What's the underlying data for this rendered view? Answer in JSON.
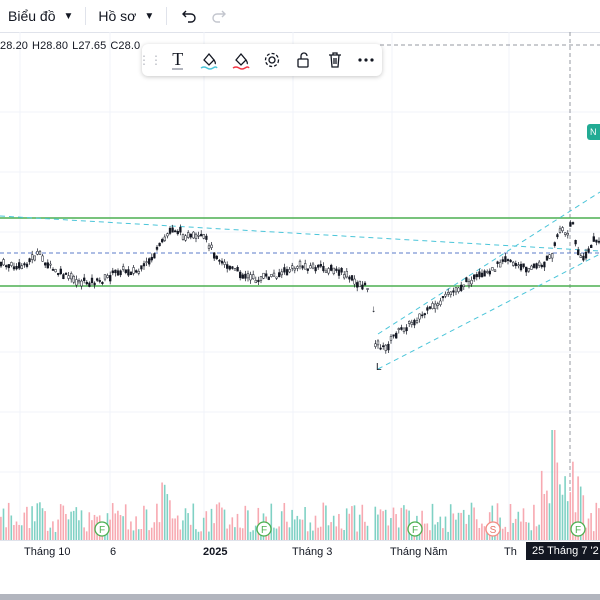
{
  "topbar": {
    "chart_menu": "Biểu đồ",
    "profile_menu": "Hồ sơ"
  },
  "ohlc": {
    "o": "28.20",
    "h": "H28.80",
    "l": "L27.65",
    "c": "C28.0"
  },
  "toolbar": {
    "text_tool": "T"
  },
  "badge": "N",
  "markers": {
    "f1": "F",
    "f2": "F",
    "f3": "F",
    "s1": "S"
  },
  "axis": {
    "labels": [
      "Tháng 10",
      "6",
      "2025",
      "Tháng 3",
      "Tháng Năm",
      "Th"
    ],
    "crosshair_date": "25 Tháng 7 '2"
  },
  "colors": {
    "up": "#089981",
    "down": "#f23645",
    "vol_up": "#7fd1c4",
    "vol_down": "#f7a9b1",
    "channel": "#4bc5d9",
    "level": "#4caf50"
  }
}
